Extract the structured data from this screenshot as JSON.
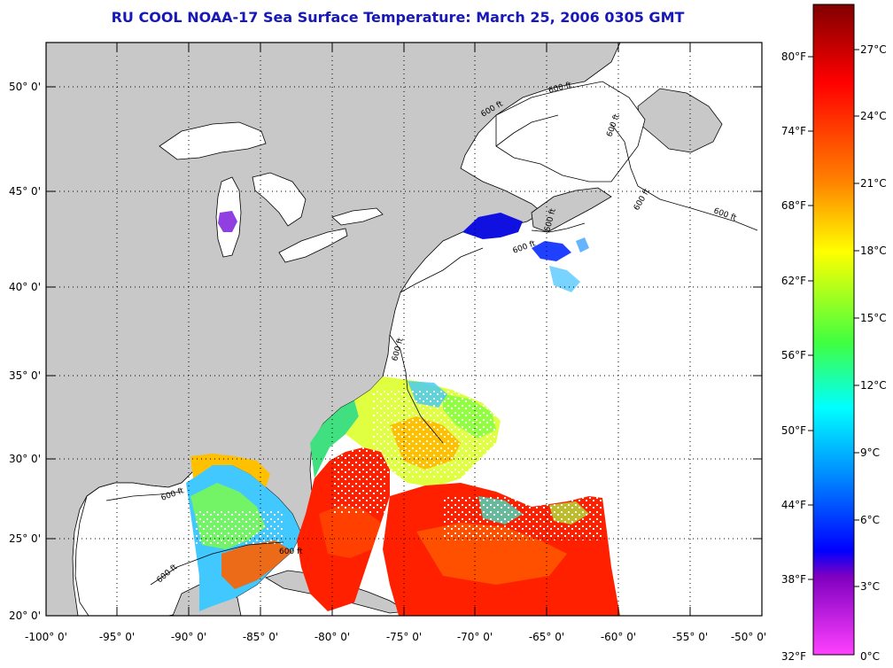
{
  "title": "RU COOL  NOAA-17  Sea Surface Temperature:  March 25, 2006 0305 GMT",
  "latitude_labels": [
    "50° 0'",
    "45° 0'",
    "40° 0'",
    "35° 0'",
    "30° 0'",
    "25° 0'",
    "20° 0'"
  ],
  "longitude_labels": [
    "-100° 0'",
    "-95° 0'",
    "-90° 0'",
    "-85° 0'",
    "-80° 0'",
    "-75° 0'",
    "-70° 0'",
    "-65° 0'",
    "-60° 0'",
    "-55° 0'",
    "-50° 0'"
  ],
  "colorbar": {
    "fahrenheit_labels": [
      "80°F",
      "74°F",
      "68°F",
      "62°F",
      "56°F",
      "50°F",
      "44°F",
      "38°F",
      "32°F"
    ],
    "celsius_labels": [
      "27°C",
      "24°C",
      "21°C",
      "18°C",
      "15°C",
      "12°C",
      "9°C",
      "6°C",
      "3°C",
      "0°C"
    ]
  },
  "contour_label": "600 ft",
  "colors": {
    "title": "#1818b8",
    "land": "#c8c8c8",
    "ocean_no_data": "#ffffff",
    "coastline": "#000000"
  }
}
